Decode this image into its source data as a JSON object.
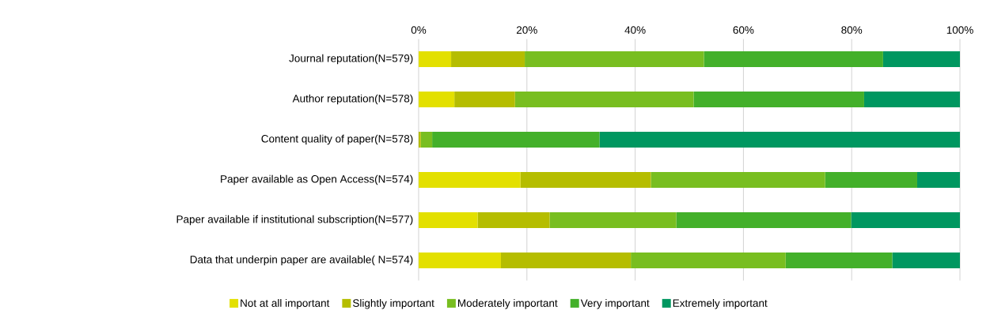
{
  "chart_data": {
    "type": "bar",
    "orientation": "horizontal",
    "stacked": true,
    "categories": [
      "Journal  reputation(N=579)",
      "Author reputation(N=578)",
      "Content quality of paper(N=578)",
      "Paper available as Open Access(N=574)",
      "Paper available if institutional subscription(N=577)",
      "Data that underpin paper are available( N=574)"
    ],
    "series": [
      {
        "name": "Not at all important",
        "color": "#e3e000",
        "values": [
          6.0,
          6.6,
          0,
          18.8,
          10.9,
          15.2
        ]
      },
      {
        "name": "Slightly important",
        "color": "#b5bd00",
        "values": [
          13.6,
          11.2,
          0.4,
          24.1,
          13.3,
          24.0
        ]
      },
      {
        "name": "Moderately important",
        "color": "#78be20",
        "values": [
          33.1,
          33.0,
          2.1,
          32.2,
          23.4,
          28.6
        ]
      },
      {
        "name": "Very important",
        "color": "#43b02a",
        "values": [
          33.1,
          31.5,
          30.9,
          17.0,
          32.3,
          19.7
        ]
      },
      {
        "name": "Extremely important",
        "color": "#009760",
        "values": [
          14.2,
          17.7,
          66.6,
          7.9,
          20.1,
          12.5
        ]
      }
    ],
    "xlim": [
      0,
      100
    ],
    "xticks": [
      {
        "value": 0,
        "label": "0%"
      },
      {
        "value": 20,
        "label": "20%"
      },
      {
        "value": 40,
        "label": "40%"
      },
      {
        "value": 60,
        "label": "60%"
      },
      {
        "value": 80,
        "label": "80%"
      },
      {
        "value": 100,
        "label": "100%"
      }
    ],
    "grid": "x",
    "legend": "bottom"
  }
}
